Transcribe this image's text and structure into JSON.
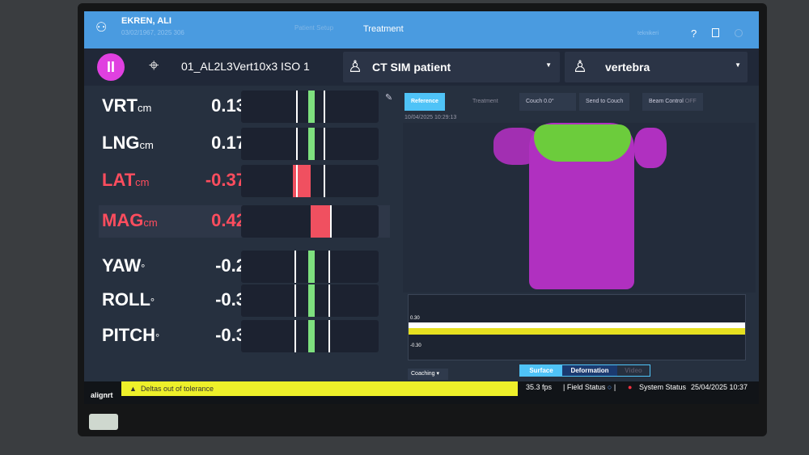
{
  "header": {
    "patient_name": "EKREN, ALI",
    "patient_info": "03/02/1967, 2025 306",
    "tab_prev": "Patient Setup",
    "tab_active": "Treatment",
    "user": "teknikeri",
    "help": "?"
  },
  "toolbar": {
    "plan": "01_AL2L3Vert10x3 ISO 1",
    "reference_surface": "CT SIM patient",
    "roi": "vertebra"
  },
  "metrics": [
    {
      "label": "VRT",
      "unit": "cm",
      "value": "0.13",
      "num": 0.13,
      "color": "#ffffff",
      "status": "in",
      "bar": "#7ee07e"
    },
    {
      "label": "LNG",
      "unit": "cm",
      "value": "0.17",
      "num": 0.17,
      "color": "#ffffff",
      "status": "in",
      "bar": "#7ee07e"
    },
    {
      "label": "LAT",
      "unit": "cm",
      "value": "-0.37",
      "num": -0.37,
      "color": "#ff4d5e",
      "status": "out",
      "bar": "#f05060"
    },
    {
      "label": "MAG",
      "unit": "cm",
      "value": "0.42",
      "num": 0.42,
      "color": "#ff4d5e",
      "status": "out",
      "bar": "#f05060"
    },
    {
      "label": "YAW",
      "unit": "°",
      "value": "-0.2",
      "num": -0.2,
      "color": "#ffffff",
      "status": "in",
      "bar": "#7ee07e"
    },
    {
      "label": "ROLL",
      "unit": "°",
      "value": "-0.3",
      "num": -0.3,
      "color": "#ffffff",
      "status": "in",
      "bar": "#7ee07e"
    },
    {
      "label": "PITCH",
      "unit": "°",
      "value": "-0.3",
      "num": -0.3,
      "color": "#ffffff",
      "status": "in",
      "bar": "#7ee07e"
    }
  ],
  "viewer": {
    "reference": "Reference",
    "treatment": "Treatment",
    "couch": "Couch 0.0°",
    "send": "Send to Couch",
    "beam": "Beam Control",
    "beam_state": "OFF",
    "timestamp": "10/04/2025 10:29:13",
    "graph_top": "0.30",
    "graph_bottom": "-0.30",
    "coaching": "Coaching",
    "modes": [
      "Surface",
      "Deformation",
      "Video"
    ]
  },
  "statusbar": {
    "brand": "alignrt",
    "warning": "Deltas out of tolerance",
    "fps": "35.3 fps",
    "field": "Field Status",
    "system": "System Status",
    "datetime": "25/04/2025 10:37"
  },
  "colors": {
    "header": "#4a9be0",
    "accent": "#4fc3f7",
    "warning": "#f0f020",
    "error": "#ff3040"
  }
}
